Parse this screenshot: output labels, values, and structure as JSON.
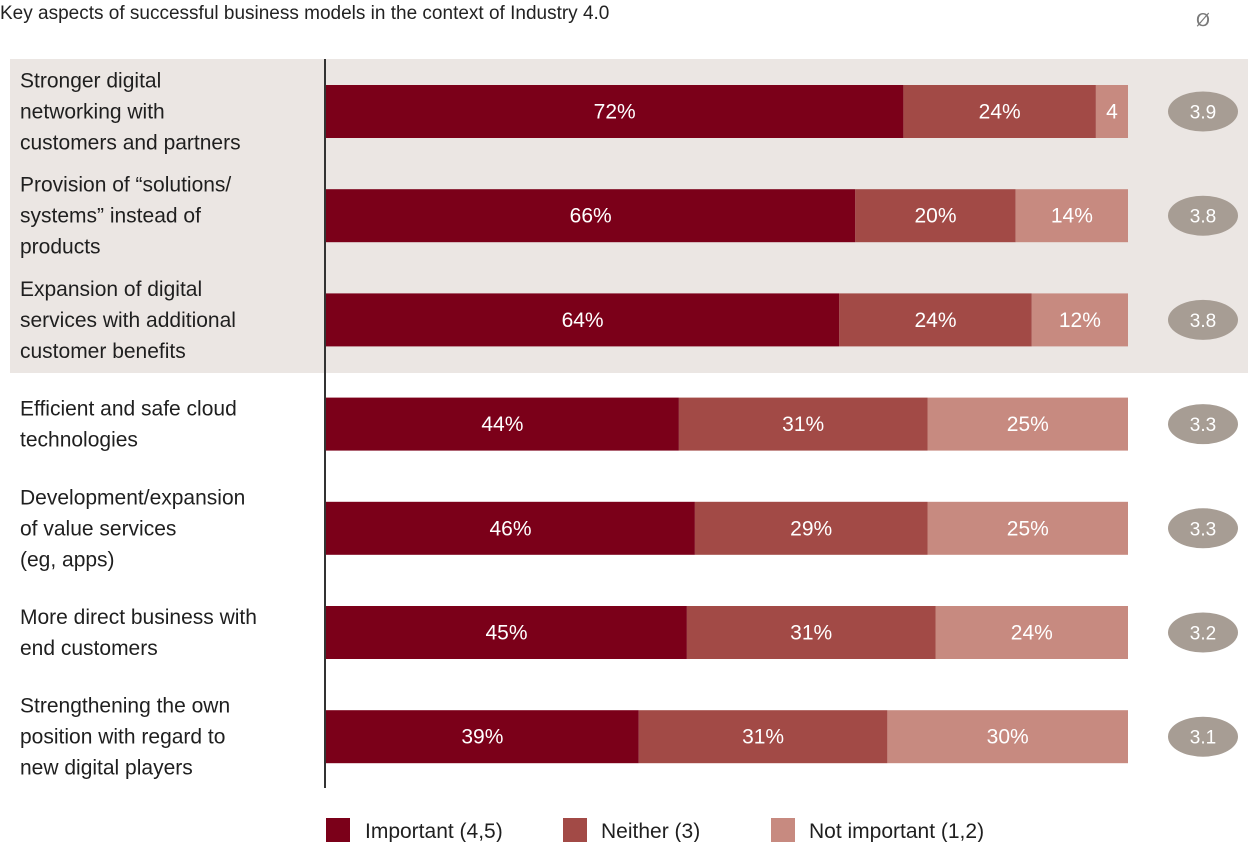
{
  "chart_data": {
    "type": "bar",
    "orientation": "horizontal",
    "stacked": true,
    "normalized": true,
    "title": "Key aspects of successful business models in the context of Industry 4.0",
    "average_header": "Ø",
    "categories": [
      [
        "Stronger digital",
        "networking with",
        "customers and partners"
      ],
      [
        "Provision of “solutions/",
        "systems” instead of",
        "products"
      ],
      [
        "Expansion of digital",
        "services with additional",
        "customer benefits"
      ],
      [
        "Efficient and safe cloud",
        "technologies"
      ],
      [
        "Development/expansion",
        "of value services",
        "(eg, apps)"
      ],
      [
        "More direct business with",
        "end customers"
      ],
      [
        "Strengthening the own",
        "position with regard to",
        "new digital players"
      ]
    ],
    "highlighted_rows": 3,
    "series": [
      {
        "name": "Important (4,5)",
        "color": "#7b0019",
        "values": [
          72,
          66,
          64,
          44,
          46,
          45,
          39
        ],
        "labels": [
          "72%",
          "66%",
          "64%",
          "44%",
          "46%",
          "45%",
          "39%"
        ]
      },
      {
        "name": "Neither (3)",
        "color": "#a24a46",
        "values": [
          24,
          20,
          24,
          31,
          29,
          31,
          31
        ],
        "labels": [
          "24%",
          "20%",
          "24%",
          "31%",
          "29%",
          "31%",
          "31%"
        ]
      },
      {
        "name": "Not important (1,2)",
        "color": "#c78a80",
        "values": [
          4,
          14,
          12,
          25,
          25,
          24,
          30
        ],
        "labels": [
          "4",
          "14%",
          "12%",
          "25%",
          "25%",
          "24%",
          "30%"
        ]
      }
    ],
    "averages": [
      "3.9",
      "3.8",
      "3.8",
      "3.3",
      "3.3",
      "3.2",
      "3.1"
    ],
    "xlim": [
      0,
      100
    ],
    "grid": false,
    "legend": "bottom",
    "colors": {
      "highlight_background": "#ebe6e3",
      "average_badge": "#a79d94",
      "axis_line": "#333333"
    }
  }
}
